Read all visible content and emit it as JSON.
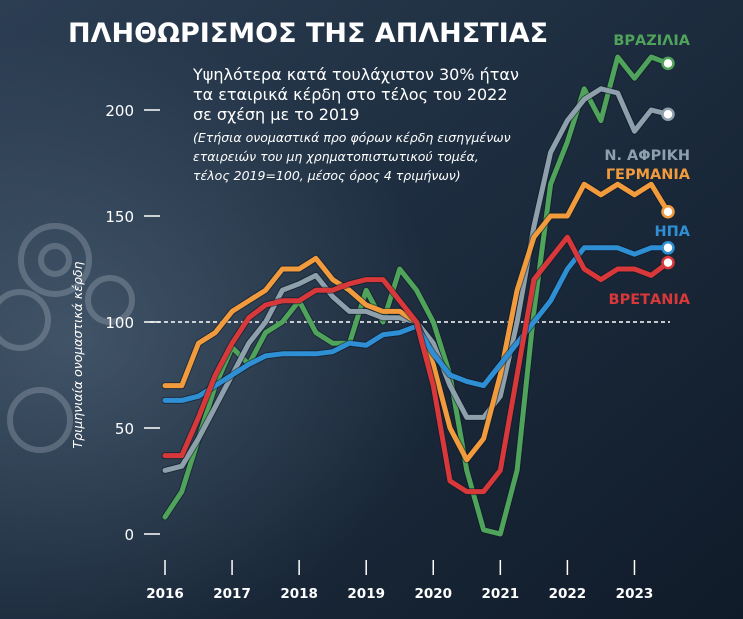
{
  "chart_data": {
    "type": "line",
    "title": "ΠΛΗΘΩΡΙΣΜΟΣ ΤΗΣ ΑΠΛΗΣΤΙΑΣ",
    "subtitle_lines": [
      "Υψηλότερα κατά τουλάχιστον 30% ήταν",
      "τα εταιρικά κέρδη στο τέλος του 2022",
      "σε σχέση με το 2019"
    ],
    "note_lines": [
      "(Ετήσια ονομαστικά προ φόρων κέρδη εισηγμένων",
      "εταιρειών του μη χρηματοπιστωτικού τομέα,",
      "τέλος 2019=100, μέσος όρος 4 τριμήνων)"
    ],
    "ylabel": "Τριμηνιαία ονομαστικά κέρδη",
    "xlabel": "",
    "ylim": [
      -5,
      215
    ],
    "yticks": [
      0,
      50,
      100,
      150,
      200
    ],
    "xticks": [
      "2016",
      "2017",
      "2018",
      "2019",
      "2020",
      "2021",
      "2022",
      "2023"
    ],
    "reference_line": 100,
    "x_start": 2016.0,
    "x_step": 0.25,
    "series": [
      {
        "name": "ΒΡΑΖΙΛΙΑ",
        "color": "#4fa35a",
        "values": [
          8,
          20,
          45,
          70,
          88,
          80,
          95,
          100,
          110,
          95,
          90,
          90,
          115,
          100,
          125,
          115,
          100,
          75,
          30,
          2,
          0,
          30,
          105,
          165,
          185,
          210,
          195,
          225,
          215,
          225,
          222
        ]
      },
      {
        "name": "Ν. ΑΦΡΙΚΗ",
        "color": "#8fa0ad",
        "values": [
          30,
          32,
          45,
          60,
          75,
          90,
          100,
          115,
          118,
          122,
          112,
          105,
          105,
          102,
          102,
          100,
          90,
          70,
          55,
          55,
          65,
          100,
          145,
          180,
          195,
          205,
          210,
          208,
          190,
          200,
          198
        ]
      },
      {
        "name": "ΓΕΡΜΑΝΙΑ",
        "color": "#f29b3d",
        "values": [
          70,
          70,
          90,
          95,
          105,
          110,
          115,
          125,
          125,
          130,
          120,
          115,
          108,
          105,
          105,
          100,
          80,
          50,
          35,
          45,
          75,
          115,
          140,
          150,
          150,
          165,
          160,
          165,
          160,
          165,
          152
        ]
      },
      {
        "name": "ΗΠΑ",
        "color": "#2e8fd4",
        "values": [
          63,
          63,
          65,
          70,
          75,
          80,
          84,
          85,
          85,
          85,
          86,
          90,
          89,
          94,
          95,
          98,
          85,
          75,
          72,
          70,
          80,
          90,
          100,
          110,
          125,
          135,
          135,
          135,
          132,
          135,
          135
        ]
      },
      {
        "name": "ΒΡΕΤΑΝΙΑ",
        "color": "#d9383a",
        "values": [
          37,
          37,
          55,
          75,
          90,
          102,
          108,
          110,
          110,
          115,
          115,
          118,
          120,
          120,
          110,
          100,
          70,
          25,
          20,
          20,
          30,
          75,
          120,
          130,
          140,
          125,
          120,
          125,
          125,
          122,
          128
        ]
      }
    ]
  }
}
